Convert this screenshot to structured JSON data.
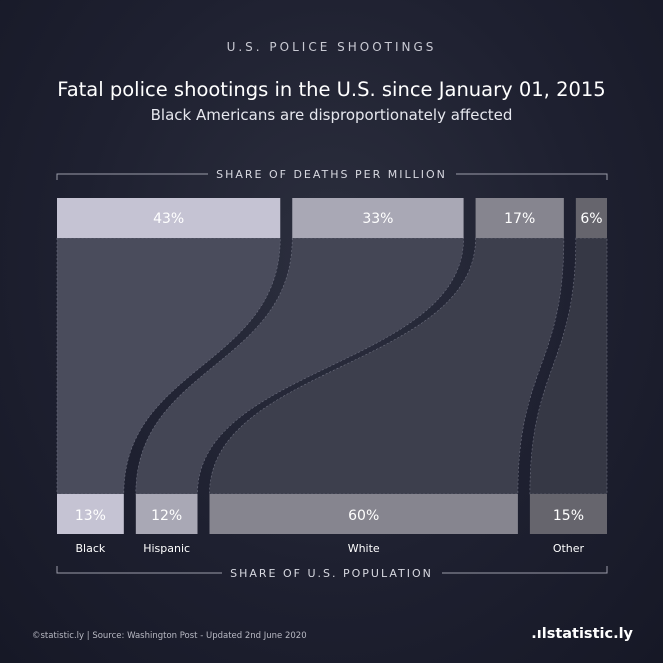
{
  "header": {
    "kicker": "U.S. POLICE SHOOTINGS",
    "title": "Fatal police shootings in the U.S. since January 01, 2015",
    "subtitle": "Black Americans are disproportionately affected"
  },
  "chart_data": {
    "type": "bar",
    "categories": [
      "Black",
      "Hispanic",
      "White",
      "Other"
    ],
    "series": [
      {
        "name": "SHARE OF DEATHS PER MILLION",
        "values": [
          43,
          33,
          17,
          6
        ]
      },
      {
        "name": "SHARE OF U.S. POPULATION",
        "values": [
          13,
          12,
          60,
          15
        ]
      }
    ],
    "top_value_labels": [
      "43%",
      "33%",
      "17%",
      "6%"
    ],
    "bottom_value_labels": [
      "13%",
      "12%",
      "60%",
      "15%"
    ],
    "top_axis_title": "SHARE OF DEATHS PER MILLION",
    "bottom_axis_title": "SHARE OF U.S. POPULATION",
    "colors": {
      "top_bars": [
        "#c5c3d3",
        "#a9a8b5",
        "#86858f",
        "#66656d"
      ],
      "bottom_bars": [
        "#c5c3d3",
        "#a9a8b5",
        "#86858f",
        "#66656d"
      ],
      "ribbons": [
        "#4a4c5c",
        "#444655",
        "#3d3f4d",
        "#363845"
      ],
      "gap": "#1e2030"
    }
  },
  "footer": {
    "source": "©statistic.ly | Source: Washington Post - Updated 2nd June 2020",
    "brand": "statistic.ly"
  }
}
